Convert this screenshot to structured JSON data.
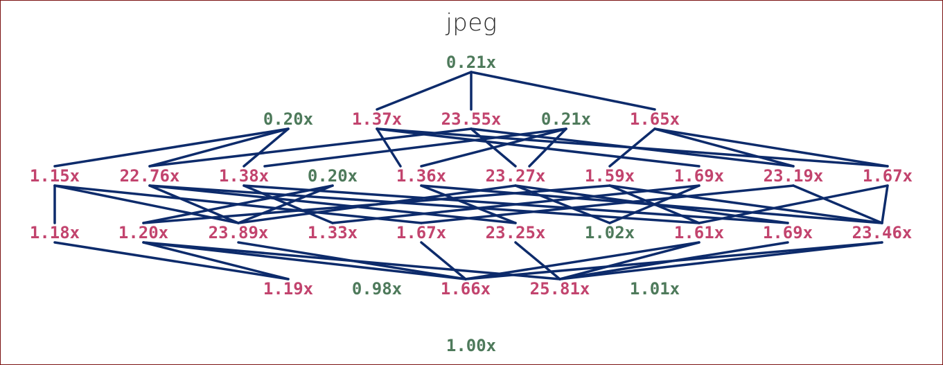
{
  "title": "jpeg",
  "colors": {
    "good": "#4e7a5b",
    "bad": "#c2446e",
    "edge": "#0d2b6b"
  },
  "rows": [
    [
      {
        "label": "0.21x",
        "tone": "good"
      }
    ],
    [
      {
        "label": "0.20x",
        "tone": "good"
      },
      {
        "label": "1.37x",
        "tone": "bad"
      },
      {
        "label": "23.55x",
        "tone": "bad"
      },
      {
        "label": "0.21x",
        "tone": "good"
      },
      {
        "label": "1.65x",
        "tone": "bad"
      }
    ],
    [
      {
        "label": "1.15x",
        "tone": "bad"
      },
      {
        "label": "22.76x",
        "tone": "bad"
      },
      {
        "label": "1.38x",
        "tone": "bad"
      },
      {
        "label": "0.20x",
        "tone": "good"
      },
      {
        "label": "1.36x",
        "tone": "bad"
      },
      {
        "label": "23.27x",
        "tone": "bad"
      },
      {
        "label": "1.59x",
        "tone": "bad"
      },
      {
        "label": "1.69x",
        "tone": "bad"
      },
      {
        "label": "23.19x",
        "tone": "bad"
      },
      {
        "label": "1.67x",
        "tone": "bad"
      }
    ],
    [
      {
        "label": "1.18x",
        "tone": "bad"
      },
      {
        "label": "1.20x",
        "tone": "bad"
      },
      {
        "label": "23.89x",
        "tone": "bad"
      },
      {
        "label": "1.33x",
        "tone": "bad"
      },
      {
        "label": "1.67x",
        "tone": "bad"
      },
      {
        "label": "23.25x",
        "tone": "bad"
      },
      {
        "label": "1.02x",
        "tone": "good"
      },
      {
        "label": "1.61x",
        "tone": "bad"
      },
      {
        "label": "1.69x",
        "tone": "bad"
      },
      {
        "label": "23.46x",
        "tone": "bad"
      }
    ],
    [
      {
        "label": "1.19x",
        "tone": "bad"
      },
      {
        "label": "0.98x",
        "tone": "good"
      },
      {
        "label": "1.66x",
        "tone": "bad"
      },
      {
        "label": "25.81x",
        "tone": "bad"
      },
      {
        "label": "1.01x",
        "tone": "good"
      }
    ],
    [
      {
        "label": "1.00x",
        "tone": "good"
      }
    ]
  ]
}
